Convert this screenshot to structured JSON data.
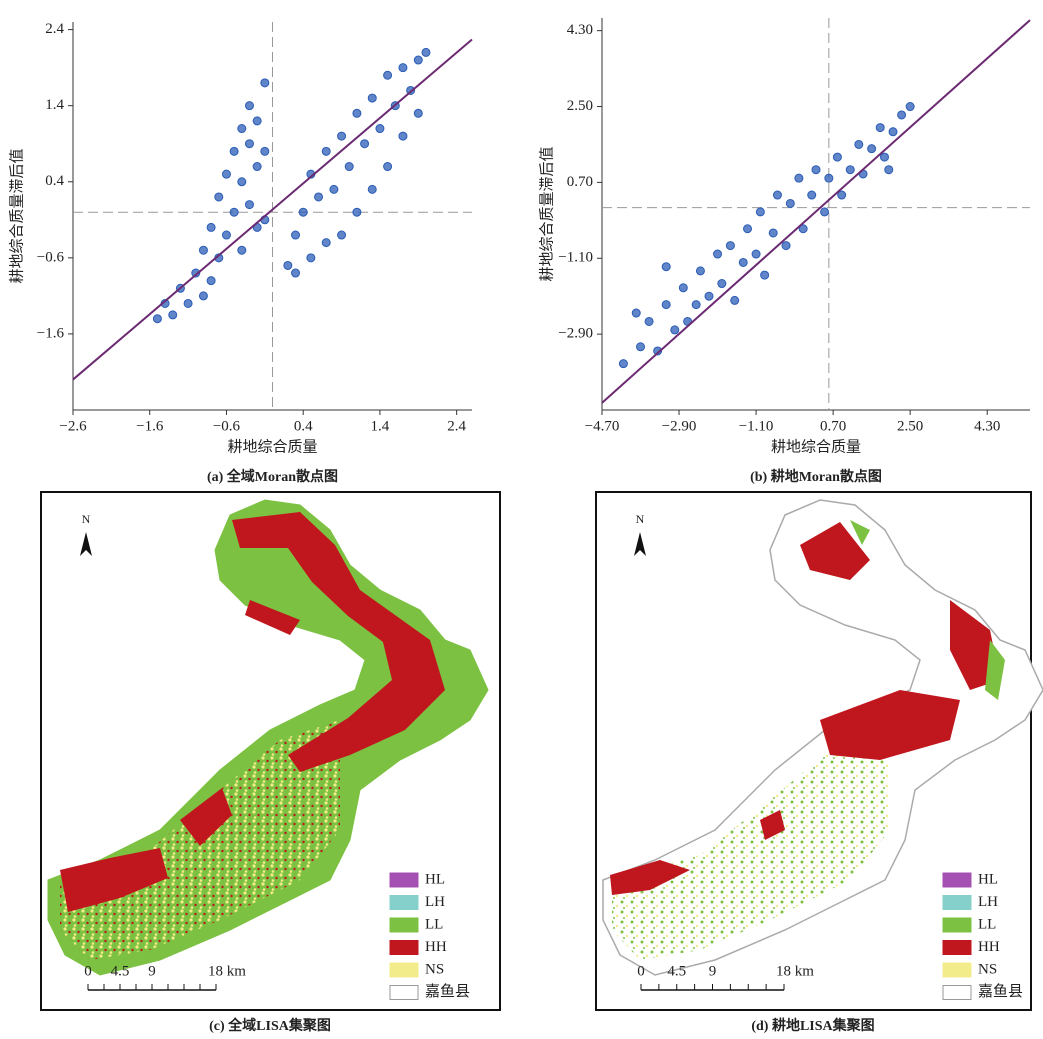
{
  "chart_data": [
    {
      "type": "scatter",
      "caption": "(a) 全域Moran散点图",
      "x_label": "耕地综合质量",
      "y_label": "耕地综合质量滞后值",
      "color": "#2b5cb5",
      "x": [
        -1.5,
        -1.4,
        -1.3,
        -1.2,
        -1.1,
        -1.0,
        -0.9,
        -0.9,
        -0.8,
        -0.8,
        -0.7,
        -0.7,
        -0.6,
        -0.6,
        -0.5,
        -0.5,
        -0.4,
        -0.4,
        -0.4,
        -0.3,
        -0.3,
        -0.3,
        -0.2,
        -0.2,
        -0.2,
        -0.1,
        -0.1,
        -0.1,
        0.2,
        0.3,
        0.3,
        0.4,
        0.5,
        0.5,
        0.6,
        0.7,
        0.7,
        0.8,
        0.9,
        0.9,
        1.0,
        1.1,
        1.1,
        1.2,
        1.3,
        1.3,
        1.4,
        1.5,
        1.5,
        1.6,
        1.7,
        1.7,
        1.8,
        1.9,
        2.0,
        1.9
      ],
      "values": [
        -1.4,
        -1.2,
        -1.35,
        -1.0,
        -1.2,
        -0.8,
        -1.1,
        -0.5,
        -0.9,
        -0.2,
        -0.6,
        0.2,
        -0.3,
        0.5,
        0.0,
        0.8,
        -0.5,
        0.4,
        1.1,
        0.1,
        0.9,
        1.4,
        0.6,
        1.2,
        -0.2,
        1.7,
        0.8,
        -0.1,
        -0.7,
        -0.3,
        -0.8,
        0.0,
        -0.6,
        0.5,
        0.2,
        -0.4,
        0.8,
        0.3,
        1.0,
        -0.3,
        0.6,
        1.3,
        0.0,
        0.9,
        1.5,
        0.3,
        1.1,
        1.8,
        0.6,
        1.4,
        1.9,
        1.0,
        1.6,
        2.0,
        2.1,
        1.3
      ],
      "fit_line": {
        "x": [
          -2.6,
          2.6
        ],
        "y": [
          -2.2,
          2.27
        ],
        "color": "#6b2a72"
      },
      "reference_lines": {
        "x": 0,
        "y": 0
      },
      "xlim": [
        -2.6,
        2.6
      ],
      "ylim": [
        -2.6,
        2.5
      ],
      "xticks": [
        {
          "value": -2.6,
          "label": "−2.6"
        },
        {
          "value": -1.6,
          "label": "−1.6"
        },
        {
          "value": -0.6,
          "label": "−0.6"
        },
        0.4,
        1.4,
        2.4
      ],
      "yticks": [
        {
          "value": -1.6,
          "label": "−1.6"
        },
        {
          "value": -0.6,
          "label": "−0.6"
        },
        0.4,
        1.4,
        2.4
      ]
    },
    {
      "type": "scatter",
      "caption": "(b) 耕地Moran散点图",
      "x_label": "耕地综合质量",
      "y_label": "耕地综合质量滞后值",
      "color": "#2b5cb5",
      "x": [
        -4.2,
        -3.8,
        -3.6,
        -3.4,
        -3.2,
        -3.0,
        -2.8,
        -2.7,
        -2.5,
        -2.4,
        -2.2,
        -2.0,
        -1.9,
        -1.7,
        -1.6,
        -1.4,
        -1.3,
        -1.1,
        -1.0,
        -0.9,
        -0.7,
        -0.6,
        -0.4,
        -0.3,
        -0.1,
        0.0,
        0.2,
        0.3,
        0.5,
        0.6,
        0.8,
        0.9,
        1.1,
        1.3,
        1.4,
        1.6,
        1.8,
        1.9,
        2.1,
        2.3,
        2.5,
        -3.2,
        -3.9,
        2.0
      ],
      "values": [
        -3.6,
        -3.2,
        -2.6,
        -3.3,
        -2.2,
        -2.8,
        -1.8,
        -2.6,
        -2.2,
        -1.4,
        -2.0,
        -1.0,
        -1.7,
        -0.8,
        -2.1,
        -1.2,
        -0.4,
        -1.0,
        0.0,
        -1.5,
        -0.5,
        0.4,
        -0.8,
        0.2,
        0.8,
        -0.4,
        0.4,
        1.0,
        0.0,
        0.8,
        1.3,
        0.4,
        1.0,
        1.6,
        0.9,
        1.5,
        2.0,
        1.3,
        1.9,
        2.3,
        2.5,
        -1.3,
        -2.4,
        1.0
      ],
      "fit_line": {
        "x": [
          -4.7,
          5.3
        ],
        "y": [
          -4.53,
          4.55
        ],
        "color": "#6b2a72"
      },
      "reference_lines": {
        "x": 0.6,
        "y": 0.1
      },
      "xlim": [
        -4.7,
        5.3
      ],
      "ylim": [
        -4.7,
        4.6
      ],
      "xticks": [
        {
          "value": -4.7,
          "label": "−4.70"
        },
        {
          "value": -2.9,
          "label": "−2.90"
        },
        {
          "value": -1.1,
          "label": "−1.10"
        },
        {
          "value": 0.7,
          "label": "0.70"
        },
        {
          "value": 2.5,
          "label": "2.50"
        },
        {
          "value": 4.3,
          "label": "4.30"
        }
      ],
      "yticks": [
        {
          "value": -2.9,
          "label": "−2.90"
        },
        {
          "value": -1.1,
          "label": "−1.10"
        },
        {
          "value": 0.7,
          "label": "0.70"
        },
        {
          "value": 2.5,
          "label": "2.50"
        },
        {
          "value": 4.3,
          "label": "4.30"
        }
      ]
    }
  ],
  "maps": [
    {
      "caption": "(c) 全域LISA集聚图",
      "north": "N",
      "legend": [
        {
          "label": "HL",
          "color": "#a550b3"
        },
        {
          "label": "LH",
          "color": "#86d0cc"
        },
        {
          "label": "LL",
          "color": "#7dc142"
        },
        {
          "label": "HH",
          "color": "#c0161d"
        },
        {
          "label": "NS",
          "color": "#f2ec8a"
        },
        {
          "label": "嘉鱼县",
          "color": "#ffffff"
        }
      ],
      "scale": [
        "0",
        "4.5",
        "9",
        "18 km"
      ]
    },
    {
      "caption": "(d) 耕地LISA集聚图",
      "north": "N",
      "legend": [
        {
          "label": "HL",
          "color": "#a550b3"
        },
        {
          "label": "LH",
          "color": "#86d0cc"
        },
        {
          "label": "LL",
          "color": "#7dc142"
        },
        {
          "label": "HH",
          "color": "#c0161d"
        },
        {
          "label": "NS",
          "color": "#f2ec8a"
        },
        {
          "label": "嘉鱼县",
          "color": "#ffffff"
        }
      ],
      "scale": [
        "0",
        "4.5",
        "9",
        "18 km"
      ]
    }
  ]
}
